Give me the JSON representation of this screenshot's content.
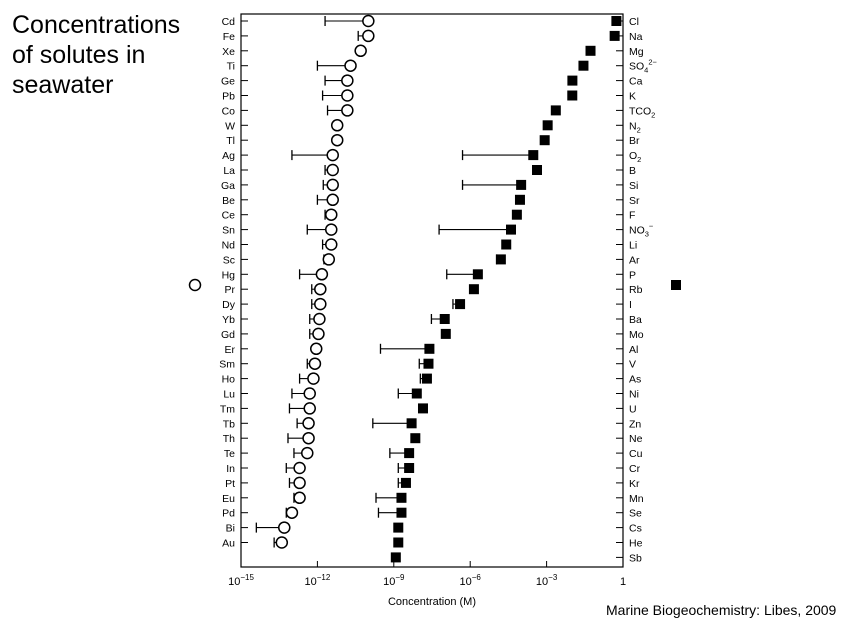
{
  "slide": {
    "title_lines": [
      "Concentrations",
      "of solutes in",
      "seawater"
    ],
    "credit": "Marine Biogeochemistry: Libes, 2009"
  },
  "legend": {
    "left_marker": "open-circle",
    "right_marker": "filled-square"
  },
  "colors": {
    "ink": "#000000",
    "background": "#ffffff"
  },
  "chart_data": {
    "type": "scatter",
    "title": "",
    "xlabel": "Concentration (M)",
    "xscale": "log",
    "xlim": [
      1e-15,
      1
    ],
    "xticks": [
      {
        "value": 1e-15,
        "base": "10",
        "exp": "−15"
      },
      {
        "value": 1e-12,
        "base": "10",
        "exp": "−12"
      },
      {
        "value": 1e-09,
        "base": "10",
        "exp": "−9"
      },
      {
        "value": 1e-06,
        "base": "10",
        "exp": "−6"
      },
      {
        "value": 0.001,
        "base": "10",
        "exp": "−3"
      },
      {
        "value": 1,
        "base": "1",
        "exp": ""
      }
    ],
    "series": [
      {
        "marker": "open-circle",
        "points": [
          {
            "label": "Cd",
            "x": 1e-10,
            "xmin": 2e-12
          },
          {
            "label": "Fe",
            "x": 1e-10,
            "xmin": 4e-11
          },
          {
            "label": "Xe",
            "x": 5e-11
          },
          {
            "label": "Ti",
            "x": 2e-11,
            "xmin": 1e-12
          },
          {
            "label": "Ge",
            "x": 1.5e-11,
            "xmin": 2e-12
          },
          {
            "label": "Pb",
            "x": 1.5e-11,
            "xmin": 1.6e-12
          },
          {
            "label": "Co",
            "x": 1.5e-11,
            "xmin": 2.5e-12
          },
          {
            "label": "W",
            "x": 6e-12
          },
          {
            "label": "Tl",
            "x": 6e-12
          },
          {
            "label": "Ag",
            "x": 4e-12,
            "xmin": 1e-13
          },
          {
            "label": "La",
            "x": 4e-12,
            "xmin": 2e-12
          },
          {
            "label": "Ga",
            "x": 4e-12,
            "xmin": 1.7e-12
          },
          {
            "label": "Be",
            "x": 4e-12,
            "xmin": 1e-12
          },
          {
            "label": "Ce",
            "x": 3.5e-12,
            "xmin": 2e-12
          },
          {
            "label": "Sn",
            "x": 3.5e-12,
            "xmin": 4e-13
          },
          {
            "label": "Nd",
            "x": 3.5e-12,
            "xmin": 1.6e-12
          },
          {
            "label": "Sc",
            "x": 2.8e-12,
            "xmin": 1.8e-12
          },
          {
            "label": "Hg",
            "x": 1.5e-12,
            "xmin": 2e-13
          },
          {
            "label": "Pr",
            "x": 1.3e-12,
            "xmin": 6e-13
          },
          {
            "label": "Dy",
            "x": 1.3e-12,
            "xmin": 6e-13
          },
          {
            "label": "Yb",
            "x": 1.2e-12,
            "xmin": 5e-13
          },
          {
            "label": "Gd",
            "x": 1.1e-12,
            "xmin": 5e-13
          },
          {
            "label": "Er",
            "x": 9e-13
          },
          {
            "label": "Sm",
            "x": 8e-13,
            "xmin": 4e-13
          },
          {
            "label": "Ho",
            "x": 7e-13,
            "xmin": 2e-13
          },
          {
            "label": "Lu",
            "x": 5e-13,
            "xmin": 1e-13
          },
          {
            "label": "Tm",
            "x": 5e-13,
            "xmin": 8e-14
          },
          {
            "label": "Tb",
            "x": 4.5e-13,
            "xmin": 1.6e-13
          },
          {
            "label": "Th",
            "x": 4.5e-13,
            "xmin": 7e-14
          },
          {
            "label": "Te",
            "x": 4e-13,
            "xmin": 1.2e-13
          },
          {
            "label": "In",
            "x": 2e-13,
            "xmin": 6e-14
          },
          {
            "label": "Pt",
            "x": 2e-13,
            "xmin": 8e-14
          },
          {
            "label": "Eu",
            "x": 2e-13,
            "xmin": 1.2e-13
          },
          {
            "label": "Pd",
            "x": 1e-13,
            "xmin": 6e-14
          },
          {
            "label": "Bi",
            "x": 5e-14,
            "xmin": 4e-15
          },
          {
            "label": "Au",
            "x": 4e-14,
            "xmin": 2e-14
          }
        ]
      },
      {
        "marker": "filled-square",
        "points": [
          {
            "label": "Cl",
            "x": 0.55
          },
          {
            "label": "Na",
            "x": 0.47
          },
          {
            "label": "Mg",
            "x": 0.053
          },
          {
            "label": "SO",
            "sup": "2−",
            "sub": "4",
            "x": 0.028
          },
          {
            "label": "Ca",
            "x": 0.0103
          },
          {
            "label": "K",
            "x": 0.0102
          },
          {
            "label": "TCO",
            "sub": "2",
            "x": 0.0023
          },
          {
            "label": "N",
            "sub": "2",
            "x": 0.0011
          },
          {
            "label": "Br",
            "x": 0.00084
          },
          {
            "label": "O",
            "sub": "2",
            "x": 0.0003,
            "xmin": 5e-07
          },
          {
            "label": "B",
            "x": 0.00042
          },
          {
            "label": "Si",
            "x": 0.0001,
            "xmin": 5e-07
          },
          {
            "label": "Sr",
            "x": 9e-05
          },
          {
            "label": "F",
            "x": 6.8e-05
          },
          {
            "label": "NO",
            "sup": "−",
            "sub": "3",
            "x": 4e-05,
            "xmin": 6e-08
          },
          {
            "label": "Li",
            "x": 2.6e-05
          },
          {
            "label": "Ar",
            "x": 1.6e-05,
            "xmin": 1.1e-05
          },
          {
            "label": "P",
            "x": 2e-06,
            "xmin": 1.2e-07
          },
          {
            "label": "Rb",
            "x": 1.4e-06
          },
          {
            "label": "I",
            "x": 4e-07,
            "xmin": 2.1e-07
          },
          {
            "label": "Ba",
            "x": 1e-07,
            "xmin": 3e-08
          },
          {
            "label": "Mo",
            "x": 1.1e-07
          },
          {
            "label": "Al",
            "x": 2.5e-08,
            "xmin": 3e-10
          },
          {
            "label": "V",
            "x": 2.3e-08,
            "xmin": 1e-08
          },
          {
            "label": "As",
            "x": 2e-08,
            "xmin": 1.1e-08
          },
          {
            "label": "Ni",
            "x": 8e-09,
            "xmin": 1.5e-09
          },
          {
            "label": "U",
            "x": 1.4e-08
          },
          {
            "label": "Zn",
            "x": 5e-09,
            "xmin": 1.5e-10
          },
          {
            "label": "Ne",
            "x": 7e-09
          },
          {
            "label": "Cu",
            "x": 4e-09,
            "xmin": 7e-10
          },
          {
            "label": "Cr",
            "x": 4e-09,
            "xmin": 1.5e-09
          },
          {
            "label": "Kr",
            "x": 3e-09,
            "xmin": 1.5e-09
          },
          {
            "label": "Mn",
            "x": 2e-09,
            "xmin": 2e-10
          },
          {
            "label": "Se",
            "x": 2e-09,
            "xmin": 2.5e-10
          },
          {
            "label": "Cs",
            "x": 1.5e-09
          },
          {
            "label": "He",
            "x": 1.5e-09
          },
          {
            "label": "Sb",
            "x": 1.2e-09
          }
        ]
      }
    ]
  }
}
